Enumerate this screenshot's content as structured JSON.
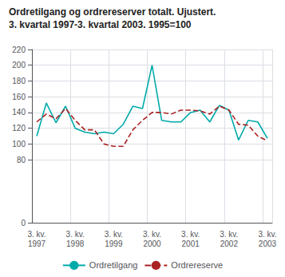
{
  "chart_data": {
    "type": "line",
    "title": "Ordretilgang og ordrereserver totalt. Ujustert.",
    "subtitle": "3. kvartal 1997-3. kvartal 2003. 1995=100",
    "categories": [
      "3. kv.\n1997",
      null,
      null,
      null,
      "3. kv.\n1998",
      null,
      null,
      null,
      "3. kv.\n1999",
      null,
      null,
      null,
      "3. kv.\n2000",
      null,
      null,
      null,
      "3. kv.\n2001",
      null,
      null,
      null,
      "3. kv.\n2002",
      null,
      null,
      null,
      "3. kv.\n2003"
    ],
    "series": [
      {
        "name": "Ordretilgang",
        "color": "#00AAAA",
        "line_style": "solid",
        "values": [
          110,
          152,
          127,
          148,
          120,
          115,
          113,
          115,
          113,
          125,
          148,
          145,
          200,
          130,
          128,
          128,
          140,
          143,
          128,
          149,
          143,
          105,
          130,
          128,
          107
        ]
      },
      {
        "name": "Ordrereserve",
        "color": "#AA2222",
        "line_style": "dashed",
        "values": [
          128,
          138,
          132,
          145,
          130,
          118,
          118,
          100,
          97,
          97,
          118,
          130,
          140,
          140,
          138,
          143,
          143,
          142,
          138,
          148,
          143,
          125,
          124,
          110,
          104
        ]
      }
    ],
    "ylim": [
      0,
      220
    ],
    "yticks": [
      0,
      80,
      100,
      120,
      140,
      160,
      180,
      200,
      220
    ],
    "grid": true,
    "legend": "bottom"
  }
}
